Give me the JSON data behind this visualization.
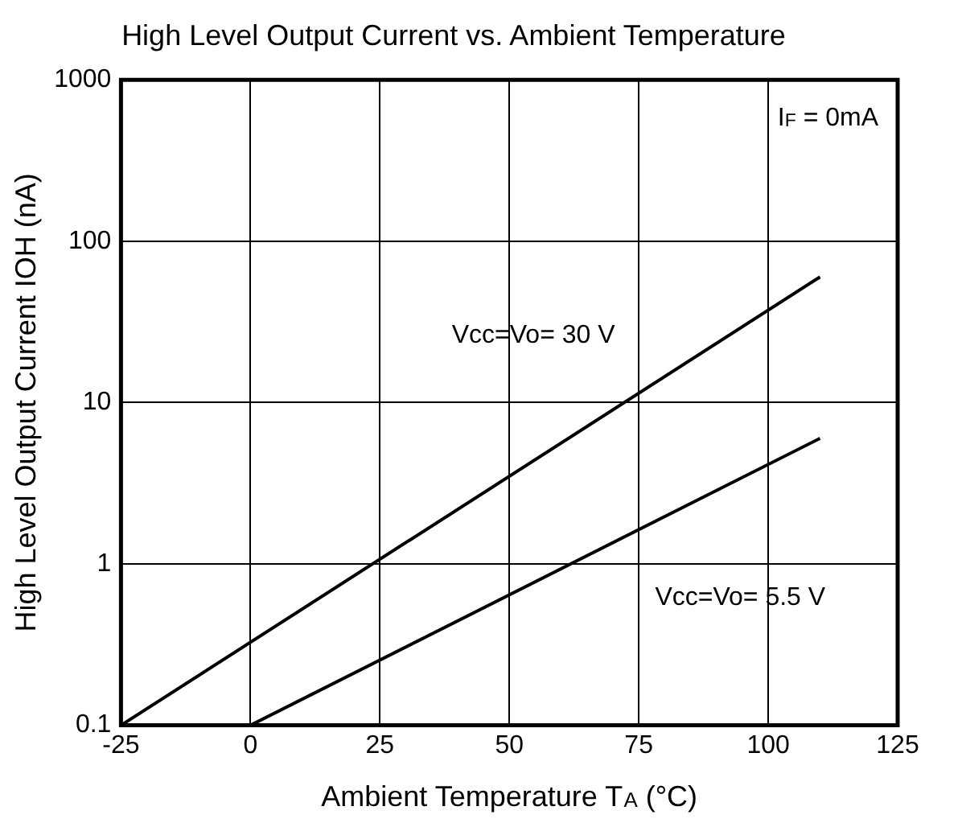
{
  "chart_data": {
    "type": "line",
    "title": "High Level Output Current vs. Ambient Temperature",
    "xlabel": "Ambient Temperature T$_{A}$ (°C)",
    "ylabel": "High Level Output Current IOH (nA)",
    "series": [
      {
        "name": "Vcc=Vo= 30 V",
        "color": "#000000",
        "x": [
          -25,
          110
        ],
        "values": [
          0.1,
          60
        ]
      },
      {
        "name": "Vcc=Vo= 5.5 V",
        "color": "#000000",
        "x": [
          0,
          110
        ],
        "values": [
          0.1,
          6
        ]
      }
    ],
    "annotations": [
      "I$_{F}$ = 0mA"
    ],
    "xlim": [
      -25,
      125
    ],
    "xticks": [
      -25,
      0,
      25,
      50,
      75,
      100,
      125
    ],
    "ylim": [
      0.1,
      1000
    ],
    "yticks": [
      0.1,
      1,
      10,
      100,
      1000
    ],
    "log": "y",
    "grid": true,
    "marker": "none",
    "line_style": "solid"
  }
}
